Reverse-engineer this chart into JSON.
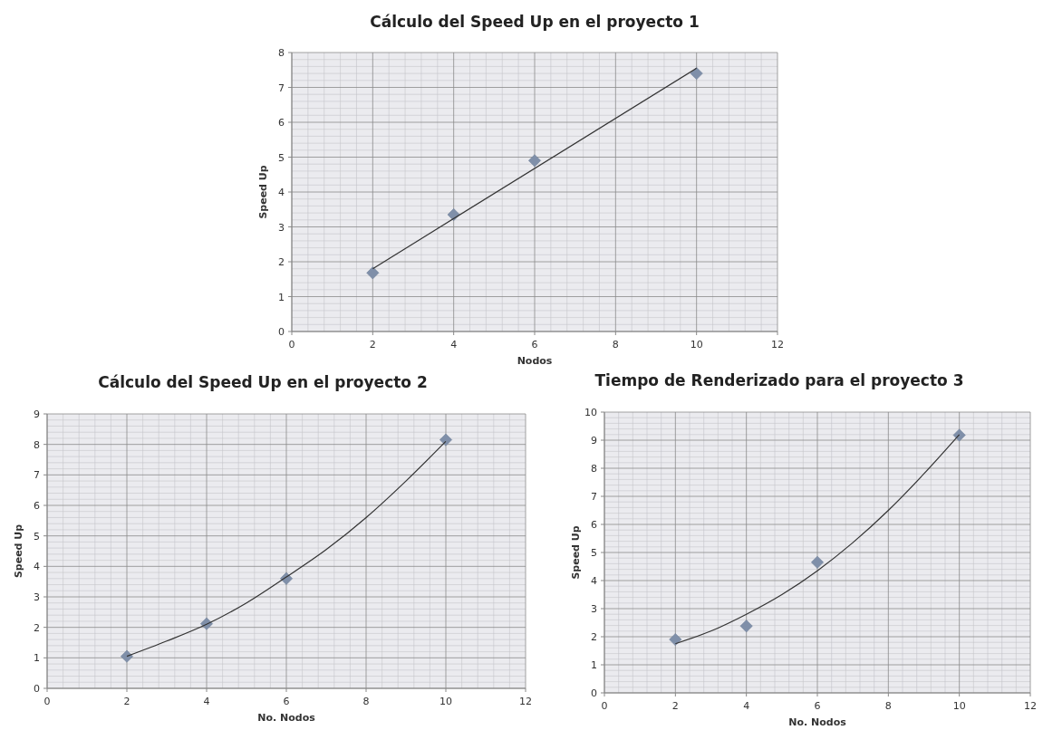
{
  "chart_data": [
    {
      "type": "scatter",
      "title": "Cálculo del Speed Up en el proyecto 1",
      "xlabel": "Nodos",
      "ylabel": "Speed Up",
      "xlim": [
        0,
        12
      ],
      "xticks": [
        0,
        2,
        4,
        6,
        8,
        10,
        12
      ],
      "ylim": [
        0,
        8
      ],
      "yticks": [
        0,
        1,
        2,
        3,
        4,
        5,
        6,
        7,
        8
      ],
      "grid": true,
      "marker": "diamond",
      "series": [
        {
          "color": "#7f8fa9",
          "x": [
            2,
            4,
            6,
            10
          ],
          "values": [
            1.68,
            3.35,
            4.9,
            7.4
          ]
        },
        {
          "type": "line",
          "color": "#333333",
          "marker": "none",
          "x": [
            2,
            10
          ],
          "values": [
            1.8,
            7.55
          ]
        }
      ]
    },
    {
      "type": "scatter",
      "title": "Cálculo del Speed Up en el proyecto 2",
      "xlabel": "No. Nodos",
      "ylabel": "Speed Up",
      "xlim": [
        0,
        12
      ],
      "xticks": [
        0,
        2,
        4,
        6,
        8,
        10,
        12
      ],
      "ylim": [
        0,
        9
      ],
      "yticks": [
        0,
        1,
        2,
        3,
        4,
        5,
        6,
        7,
        8,
        9
      ],
      "grid": true,
      "marker": "diamond",
      "series": [
        {
          "color": "#7f8fa9",
          "x": [
            2,
            4,
            6,
            10
          ],
          "values": [
            1.05,
            2.12,
            3.6,
            8.15
          ]
        },
        {
          "type": "line",
          "color": "#333333",
          "marker": "none",
          "x": [
            2,
            3,
            4,
            5,
            6,
            7,
            8,
            9,
            10
          ],
          "values": [
            1.05,
            1.55,
            2.1,
            2.8,
            3.65,
            4.55,
            5.6,
            6.8,
            8.1
          ]
        }
      ]
    },
    {
      "type": "scatter",
      "title": "Tiempo de Renderizado para el proyecto 3",
      "xlabel": "No. Nodos",
      "ylabel": "Speed Up",
      "xlim": [
        0,
        12
      ],
      "xticks": [
        0,
        2,
        4,
        6,
        8,
        10,
        12
      ],
      "ylim": [
        0,
        10
      ],
      "yticks": [
        0,
        1,
        2,
        3,
        4,
        5,
        6,
        7,
        8,
        9,
        10
      ],
      "grid": true,
      "marker": "diamond",
      "series": [
        {
          "color": "#7f8fa9",
          "x": [
            2,
            4,
            6,
            10
          ],
          "values": [
            1.9,
            2.38,
            4.65,
            9.18
          ]
        },
        {
          "type": "line",
          "color": "#333333",
          "marker": "none",
          "x": [
            2,
            3,
            4,
            5,
            6,
            7,
            8,
            9,
            10
          ],
          "values": [
            1.75,
            2.2,
            2.8,
            3.5,
            4.35,
            5.35,
            6.5,
            7.8,
            9.2
          ]
        }
      ]
    }
  ]
}
